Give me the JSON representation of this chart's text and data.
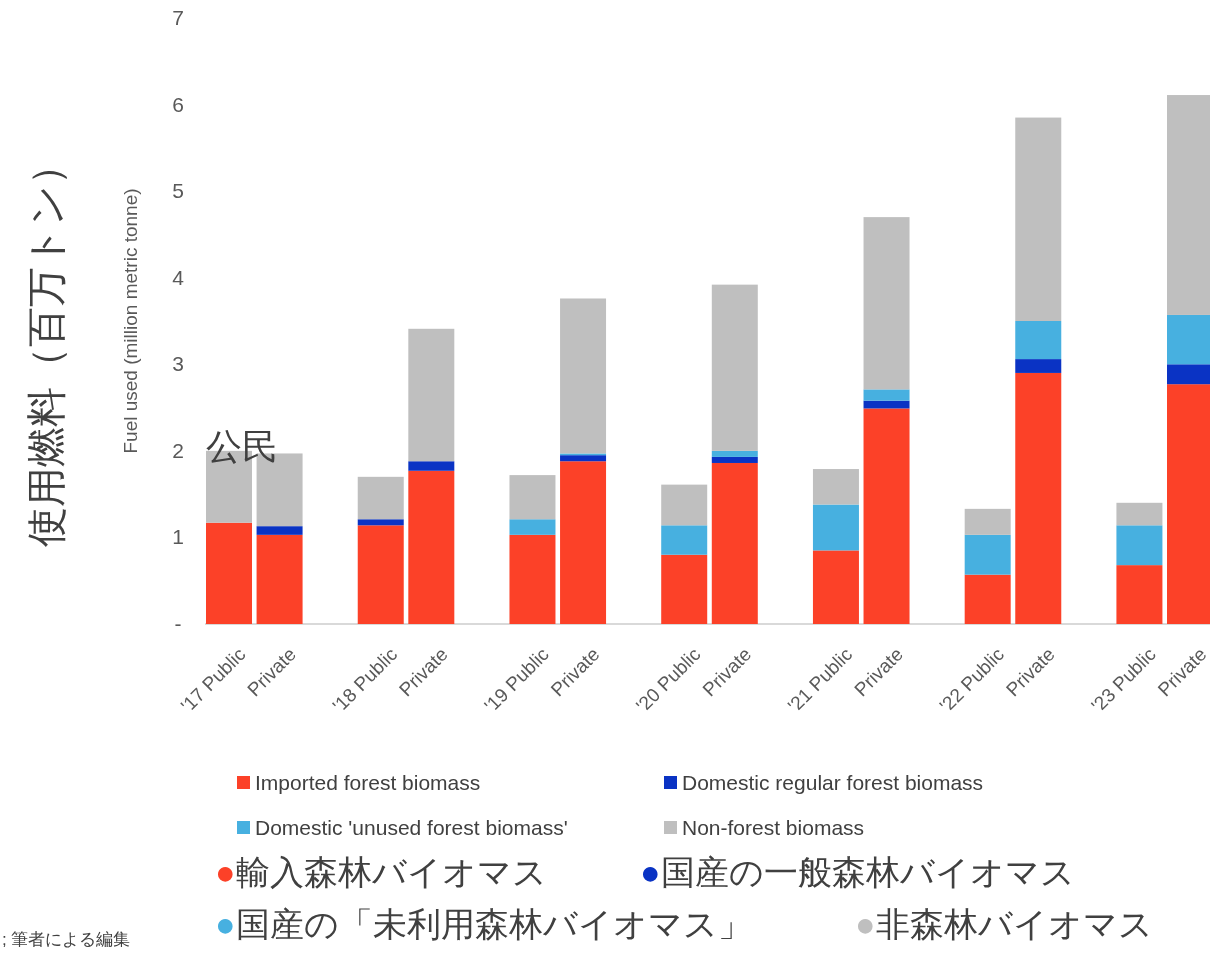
{
  "chart_data": {
    "type": "bar",
    "stacked": true,
    "ylabel": "Fuel used (million metric tonne)",
    "categories": [
      "'17 Public",
      "Private",
      "'18 Public",
      "Private",
      "'19 Public",
      "Private",
      "'20 Public",
      "Private",
      "'21 Public",
      "Private",
      "'22 Public",
      "Private",
      "'23 Public",
      "Private"
    ],
    "series": [
      {
        "name": "Imported forest biomass",
        "color": "#fc4128",
        "values": [
          1.17,
          1.03,
          1.14,
          1.77,
          1.03,
          1.88,
          0.8,
          1.86,
          0.85,
          2.49,
          0.57,
          2.9,
          0.68,
          2.77
        ]
      },
      {
        "name": "Domestic regular forest biomass",
        "color": "#0a33c4",
        "values": [
          0,
          0.1,
          0.07,
          0.11,
          0,
          0.07,
          0,
          0.07,
          0,
          0.09,
          0,
          0.16,
          0,
          0.23
        ]
      },
      {
        "name": "Domestic 'unused forest biomass'",
        "color": "#47b0e0",
        "values": [
          0,
          0,
          0,
          0,
          0.18,
          0.02,
          0.34,
          0.07,
          0.53,
          0.13,
          0.46,
          0.44,
          0.46,
          0.57
        ]
      },
      {
        "name": "Non-forest biomass",
        "color": "#bfbfbf",
        "values": [
          0.83,
          0.84,
          0.49,
          1.53,
          0.51,
          1.79,
          0.47,
          1.92,
          0.41,
          1.99,
          0.3,
          2.35,
          0.26,
          2.54
        ]
      }
    ],
    "ylim": [
      0,
      7
    ],
    "yticks": [
      {
        "value": 0,
        "label": "-"
      },
      1,
      2,
      3,
      4,
      5,
      6,
      7
    ],
    "legend": "bottom",
    "annotations": [
      "公民",
      "使用燃料（百万トン）",
      "●輸入森林バイオマス",
      "●国産の一般森林バイオマス",
      "●国産の「未利用森林バイオマス」",
      "●非森林バイオマス",
      "; 筆者による編集"
    ]
  }
}
